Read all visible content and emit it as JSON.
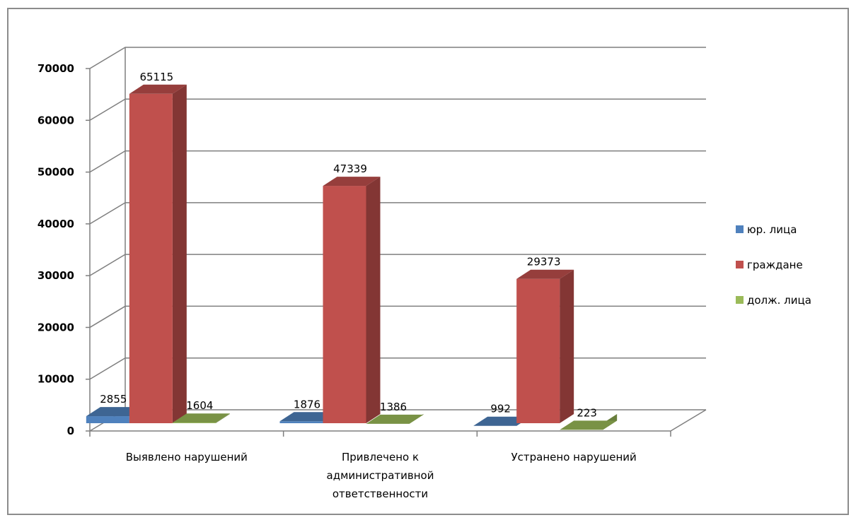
{
  "chart_data": {
    "type": "bar",
    "title": "",
    "xlabel": "",
    "ylabel": "",
    "ylim": [
      0,
      70000
    ],
    "yticks": [
      0,
      10000,
      20000,
      30000,
      40000,
      50000,
      60000,
      70000
    ],
    "grid": true,
    "legend_position": "right",
    "categories": [
      [
        "Выявлено нарушений"
      ],
      [
        "Привлечено к",
        "административной",
        "ответственности"
      ],
      [
        "Устранено нарушений"
      ]
    ],
    "series": [
      {
        "name": "юр. лица",
        "values": [
          2855,
          1876,
          992
        ],
        "color": "#4f81bd"
      },
      {
        "name": "граждане",
        "values": [
          65115,
          47339,
          29373
        ],
        "color": "#c0504d"
      },
      {
        "name": "долж. лица",
        "values": [
          1604,
          1386,
          223
        ],
        "color": "#9bbb59"
      }
    ]
  }
}
